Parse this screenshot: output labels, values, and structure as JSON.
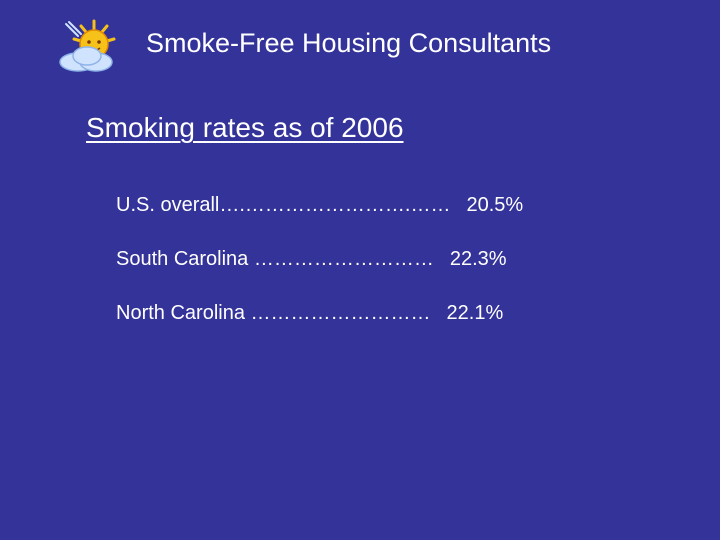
{
  "header": {
    "title": "Smoke-Free Housing Consultants",
    "logo_icon": "sun-cloud-logo-icon"
  },
  "main": {
    "heading": "Smoking rates as of 2006",
    "rates": [
      {
        "label": "U.S. overall",
        "dots": "….…………………….……",
        "value": "20.5%"
      },
      {
        "label": "South Carolina",
        "dots": " ………………………",
        "value": "22.3%"
      },
      {
        "label": "North Carolina",
        "dots": " ………………………",
        "value": "22.1%"
      }
    ]
  },
  "colors": {
    "background": "#333399",
    "text": "#ffffff",
    "sun": "#f6c21a",
    "cloud": "#cfe3ff"
  }
}
